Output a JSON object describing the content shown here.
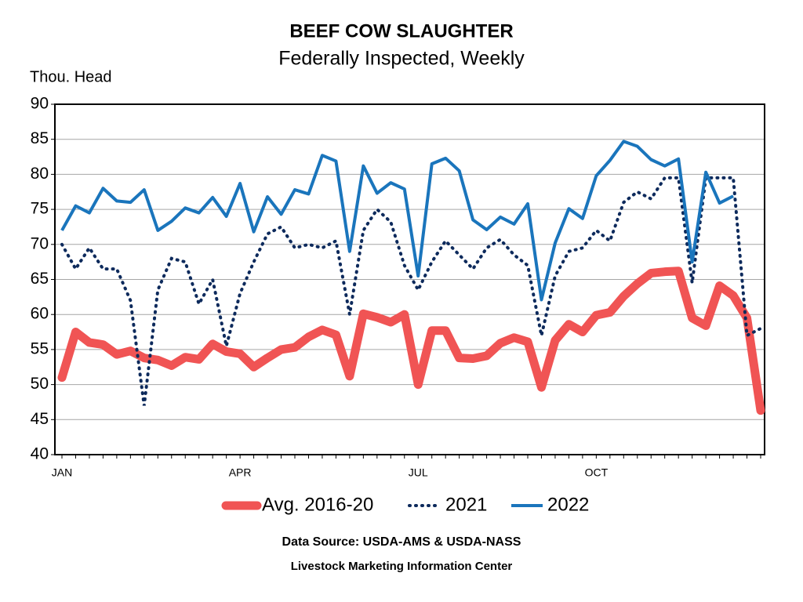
{
  "chart_data": {
    "type": "line",
    "title": "BEEF COW SLAUGHTER",
    "subtitle": "Federally Inspected, Weekly",
    "y_label": "Thou. Head",
    "source": "Data Source:  USDA-AMS & USDA-NASS",
    "credit": "Livestock Marketing Information Center",
    "categories": [
      "JAN",
      null,
      null,
      null,
      null,
      null,
      null,
      null,
      null,
      null,
      null,
      null,
      null,
      "APR",
      null,
      null,
      null,
      null,
      null,
      null,
      null,
      null,
      null,
      null,
      null,
      null,
      "JUL",
      null,
      null,
      null,
      null,
      null,
      null,
      null,
      null,
      null,
      null,
      null,
      null,
      "OCT",
      null,
      null,
      null,
      null,
      null,
      null,
      null,
      null,
      null,
      null,
      null,
      null
    ],
    "ylim": [
      40,
      90
    ],
    "yticks": [
      40,
      45,
      50,
      55,
      60,
      65,
      70,
      75,
      80,
      85,
      90
    ],
    "grid": true,
    "series": [
      {
        "name": "Avg. 2016-20",
        "color": "#f05454",
        "style": "thick",
        "values": [
          51,
          57.5,
          56,
          55.7,
          54.3,
          54.8,
          53.8,
          53.5,
          52.7,
          53.9,
          53.6,
          55.8,
          54.7,
          54.4,
          52.5,
          53.8,
          55.0,
          55.3,
          56.8,
          57.8,
          57.1,
          51.2,
          60.1,
          59.6,
          58.9,
          60.0,
          50.0,
          57.7,
          57.7,
          53.8,
          53.7,
          54.1,
          55.9,
          56.7,
          56.1,
          49.6,
          56.3,
          58.6,
          57.5,
          59.9,
          60.3,
          62.6,
          64.4,
          65.9,
          66.1,
          66.2,
          59.5,
          58.4,
          64.1,
          62.7,
          59.5,
          46.3
        ]
      },
      {
        "name": "2021",
        "color": "#0d2a5c",
        "style": "dotted",
        "values": [
          70,
          66.5,
          69.5,
          66.5,
          66.5,
          62,
          47,
          63.5,
          68,
          67.5,
          61.5,
          65,
          55.5,
          63,
          67.5,
          71.5,
          72.5,
          69.5,
          70,
          69.5,
          70.5,
          60,
          72,
          75,
          73.2,
          67,
          63.5,
          67.5,
          70.5,
          68.5,
          66.5,
          69.5,
          70.7,
          68.5,
          67,
          57,
          65.5,
          69,
          69.5,
          72,
          70.5,
          76,
          77.5,
          76.5,
          79.5,
          79.5,
          64.5,
          79.5,
          79.5,
          79.5,
          57,
          58
        ]
      },
      {
        "name": "2022",
        "color": "#1a75bc",
        "style": "solid",
        "values": [
          72,
          75.5,
          74.5,
          78,
          76.2,
          76,
          77.8,
          72,
          73.3,
          75.2,
          74.5,
          76.7,
          74,
          78.7,
          71.8,
          76.8,
          74.3,
          77.8,
          77.2,
          82.7,
          81.9,
          69,
          81.2,
          77.3,
          78.8,
          77.9,
          65.5,
          81.5,
          82.3,
          80.5,
          73.5,
          72.1,
          73.9,
          72.9,
          75.8,
          62.1,
          70.2,
          75.1,
          73.7,
          79.8,
          82,
          84.7,
          84,
          82.1,
          81.2,
          82.2,
          67.5,
          80.3,
          75.9,
          76.9,
          null,
          null
        ]
      }
    ]
  }
}
